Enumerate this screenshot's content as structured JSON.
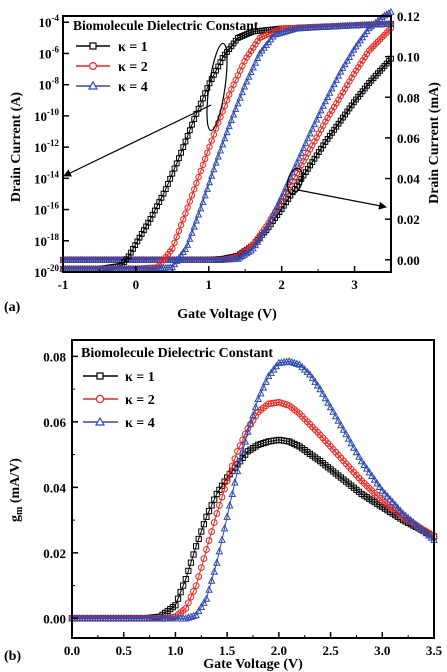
{
  "panel_labels": [
    "(a)",
    "(b)"
  ],
  "chart_data": [
    {
      "panel": "(a)",
      "type": "line",
      "xlabel": "Gate Voltage (V)",
      "ylabel_left": "Drain Current (A)",
      "ylabel_right": "Drain Current (mA)",
      "xlim": [
        -1,
        3.5
      ],
      "ylim_left_log10": [
        -20,
        -3.6
      ],
      "ylim_right": [
        -0.006,
        0.12
      ],
      "left_scale": "log",
      "x_ticks": [
        "-1",
        "0",
        "1",
        "2",
        "3"
      ],
      "left_ticks": [
        "10-20",
        "10-18",
        "10-16",
        "10-14",
        "10-12",
        "10-10",
        "10-8",
        "10-6",
        "10-4"
      ],
      "left_tick_values": [
        -20,
        -18,
        -16,
        -14,
        -12,
        -10,
        -8,
        -6,
        -4
      ],
      "right_ticks": [
        "0.00",
        "0.02",
        "0.04",
        "0.06",
        "0.08",
        "0.10",
        "0.12"
      ],
      "right_tick_values": [
        0.0,
        0.02,
        0.04,
        0.06,
        0.08,
        0.1,
        0.12
      ],
      "legend_title": "Biomolecule Dielectric Constant",
      "legend_position": "top-left",
      "grid": false,
      "series": [
        {
          "name": "κ = 1",
          "color": "#000000",
          "marker": "square",
          "log_current": {
            "x": [
              -1.0,
              -0.5,
              -0.2,
              -0.1,
              0.0,
              0.2,
              0.4,
              0.6,
              0.8,
              1.0,
              1.2,
              1.4,
              1.6,
              2.0,
              3.0,
              3.5
            ],
            "log10_A": [
              -19.8,
              -19.8,
              -19.6,
              -19.0,
              -18.2,
              -16.6,
              -14.8,
              -12.6,
              -10.2,
              -8.0,
              -6.2,
              -5.0,
              -4.6,
              -4.4,
              -4.2,
              -4.1
            ]
          },
          "linear_current": {
            "x": [
              -1.0,
              0.0,
              1.0,
              1.2,
              1.4,
              1.6,
              1.8,
              2.0,
              2.2,
              2.4,
              2.6,
              2.8,
              3.0,
              3.2,
              3.5
            ],
            "mA": [
              0.0,
              0.0,
              0.0,
              0.0005,
              0.002,
              0.007,
              0.015,
              0.025,
              0.036,
              0.047,
              0.058,
              0.068,
              0.078,
              0.087,
              0.099
            ]
          }
        },
        {
          "name": "κ = 2",
          "color": "#e8261f",
          "marker": "circle",
          "log_current": {
            "x": [
              -1.0,
              0.0,
              0.3,
              0.5,
              0.7,
              0.9,
              1.1,
              1.3,
              1.5,
              1.7,
              2.0,
              3.0,
              3.5
            ],
            "log10_A": [
              -19.8,
              -19.8,
              -19.7,
              -18.5,
              -16.0,
              -13.4,
              -10.8,
              -8.4,
              -6.4,
              -5.0,
              -4.4,
              -4.2,
              -4.1
            ]
          },
          "linear_current": {
            "x": [
              -1.0,
              0.0,
              1.0,
              1.2,
              1.4,
              1.6,
              1.8,
              2.0,
              2.2,
              2.4,
              2.6,
              2.8,
              3.0,
              3.2,
              3.5
            ],
            "mA": [
              0.0,
              0.0,
              0.0,
              0.0,
              0.0015,
              0.007,
              0.017,
              0.029,
              0.042,
              0.055,
              0.068,
              0.08,
              0.092,
              0.103,
              0.114
            ]
          }
        },
        {
          "name": "κ = 4",
          "color": "#2f4bb0",
          "marker": "triangle",
          "log_current": {
            "x": [
              -1.0,
              -0.3,
              0.2,
              0.5,
              0.7,
              0.9,
              1.1,
              1.3,
              1.5,
              1.7,
              1.9,
              2.2,
              3.0,
              3.5
            ],
            "log10_A": [
              -19.8,
              -19.8,
              -19.8,
              -19.7,
              -18.4,
              -15.8,
              -13.0,
              -10.4,
              -8.0,
              -6.0,
              -4.8,
              -4.4,
              -4.2,
              -4.1
            ]
          },
          "linear_current": {
            "x": [
              -1.0,
              0.0,
              1.0,
              1.2,
              1.4,
              1.6,
              1.8,
              2.0,
              2.2,
              2.4,
              2.6,
              2.8,
              3.0,
              3.2,
              3.4,
              3.5
            ],
            "mA": [
              0.0,
              0.0,
              0.0,
              0.0,
              0.0005,
              0.005,
              0.016,
              0.031,
              0.047,
              0.063,
              0.078,
              0.092,
              0.104,
              0.114,
              0.12,
              0.122
            ]
          }
        }
      ]
    },
    {
      "panel": "(b)",
      "type": "line",
      "xlabel": "Gate Voltage (V)",
      "ylabel": "g",
      "ylabel_sub": "m",
      "ylabel_units": " (mA/V)",
      "xlim": [
        0,
        3.5
      ],
      "ylim": [
        -0.006,
        0.085
      ],
      "x_ticks": [
        "0.0",
        "0.5",
        "1.0",
        "1.5",
        "2.0",
        "2.5",
        "3.0",
        "3.5"
      ],
      "x_tick_values": [
        0,
        0.5,
        1,
        1.5,
        2,
        2.5,
        3,
        3.5
      ],
      "y_ticks": [
        "0.00",
        "0.02",
        "0.04",
        "0.06",
        "0.08"
      ],
      "y_tick_values": [
        0.0,
        0.02,
        0.04,
        0.06,
        0.08
      ],
      "legend_title": "Biomolecule Dielectric Constant",
      "legend_position": "top-left",
      "grid": false,
      "series": [
        {
          "name": "κ = 1",
          "color": "#000000",
          "marker": "square",
          "x": [
            0.0,
            0.7,
            0.85,
            1.0,
            1.1,
            1.2,
            1.3,
            1.4,
            1.5,
            1.6,
            1.7,
            1.8,
            1.9,
            2.0,
            2.1,
            2.2,
            2.4,
            2.6,
            2.8,
            3.0,
            3.2,
            3.5
          ],
          "y": [
            0.0,
            0.0,
            0.0005,
            0.004,
            0.012,
            0.022,
            0.031,
            0.038,
            0.043,
            0.047,
            0.051,
            0.053,
            0.054,
            0.0545,
            0.054,
            0.0525,
            0.048,
            0.043,
            0.038,
            0.034,
            0.03,
            0.025
          ]
        },
        {
          "name": "κ = 2",
          "color": "#e8261f",
          "marker": "circle",
          "x": [
            0.0,
            0.9,
            1.0,
            1.1,
            1.2,
            1.3,
            1.4,
            1.5,
            1.6,
            1.7,
            1.8,
            1.9,
            2.0,
            2.1,
            2.2,
            2.4,
            2.6,
            2.8,
            3.0,
            3.2,
            3.5
          ],
          "y": [
            0.0,
            0.0,
            0.0005,
            0.003,
            0.01,
            0.021,
            0.032,
            0.042,
            0.051,
            0.058,
            0.063,
            0.0655,
            0.066,
            0.065,
            0.0625,
            0.056,
            0.049,
            0.042,
            0.036,
            0.031,
            0.025
          ]
        },
        {
          "name": "κ = 4",
          "color": "#2f4bb0",
          "marker": "triangle",
          "x": [
            0.0,
            1.1,
            1.2,
            1.3,
            1.4,
            1.5,
            1.6,
            1.7,
            1.8,
            1.9,
            2.0,
            2.1,
            2.2,
            2.3,
            2.4,
            2.6,
            2.8,
            3.0,
            3.2,
            3.5
          ],
          "y": [
            0.0,
            0.0,
            0.001,
            0.006,
            0.017,
            0.031,
            0.045,
            0.057,
            0.067,
            0.074,
            0.078,
            0.0785,
            0.0775,
            0.0745,
            0.07,
            0.059,
            0.048,
            0.039,
            0.032,
            0.024
          ]
        }
      ]
    }
  ]
}
